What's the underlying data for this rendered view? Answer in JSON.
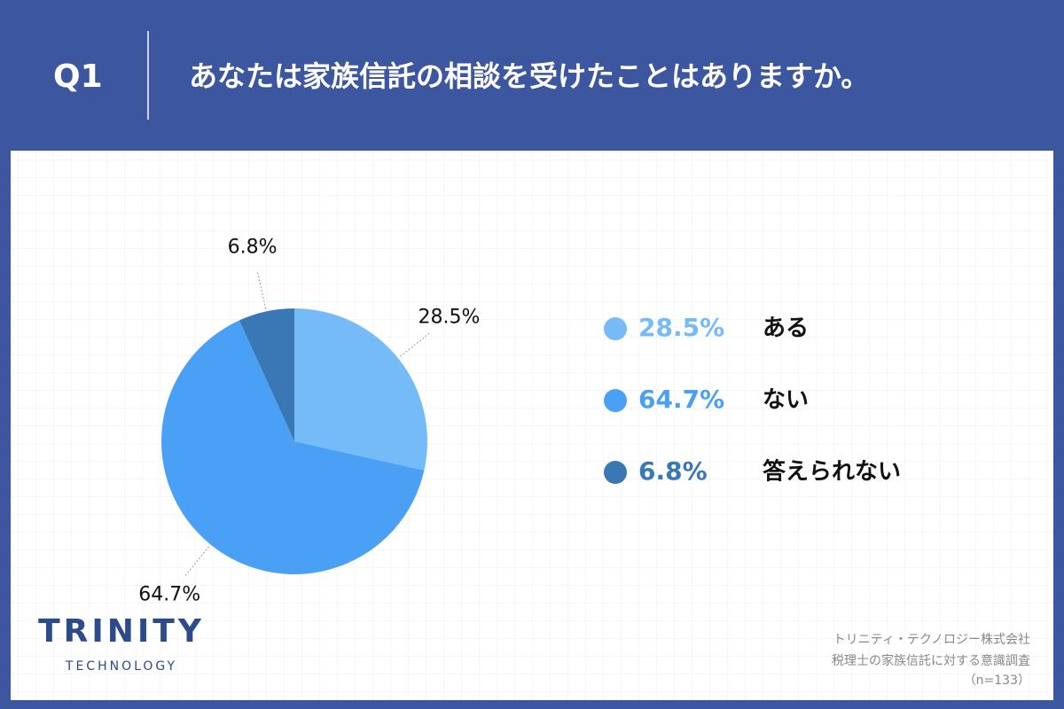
{
  "header": {
    "label": "Q1",
    "question": "あなたは家族信託の相談を受けたことはありますか。"
  },
  "chart_data": {
    "type": "pie",
    "categories": [
      "ある",
      "ない",
      "答えられない"
    ],
    "values": [
      28.5,
      64.7,
      6.8
    ],
    "value_labels": [
      "28.5%",
      "64.7%",
      "6.8%"
    ],
    "colors": [
      "#74bbf7",
      "#4aa0f5",
      "#3a78b5"
    ],
    "legend": "right"
  },
  "logo": {
    "name": "TRINITY",
    "sub": "TECHNOLOGY"
  },
  "footer": {
    "company": "トリニティ・テクノロジー株式会社",
    "survey": "税理士の家族信託に対する意識調査",
    "sample": "（n=133）"
  }
}
